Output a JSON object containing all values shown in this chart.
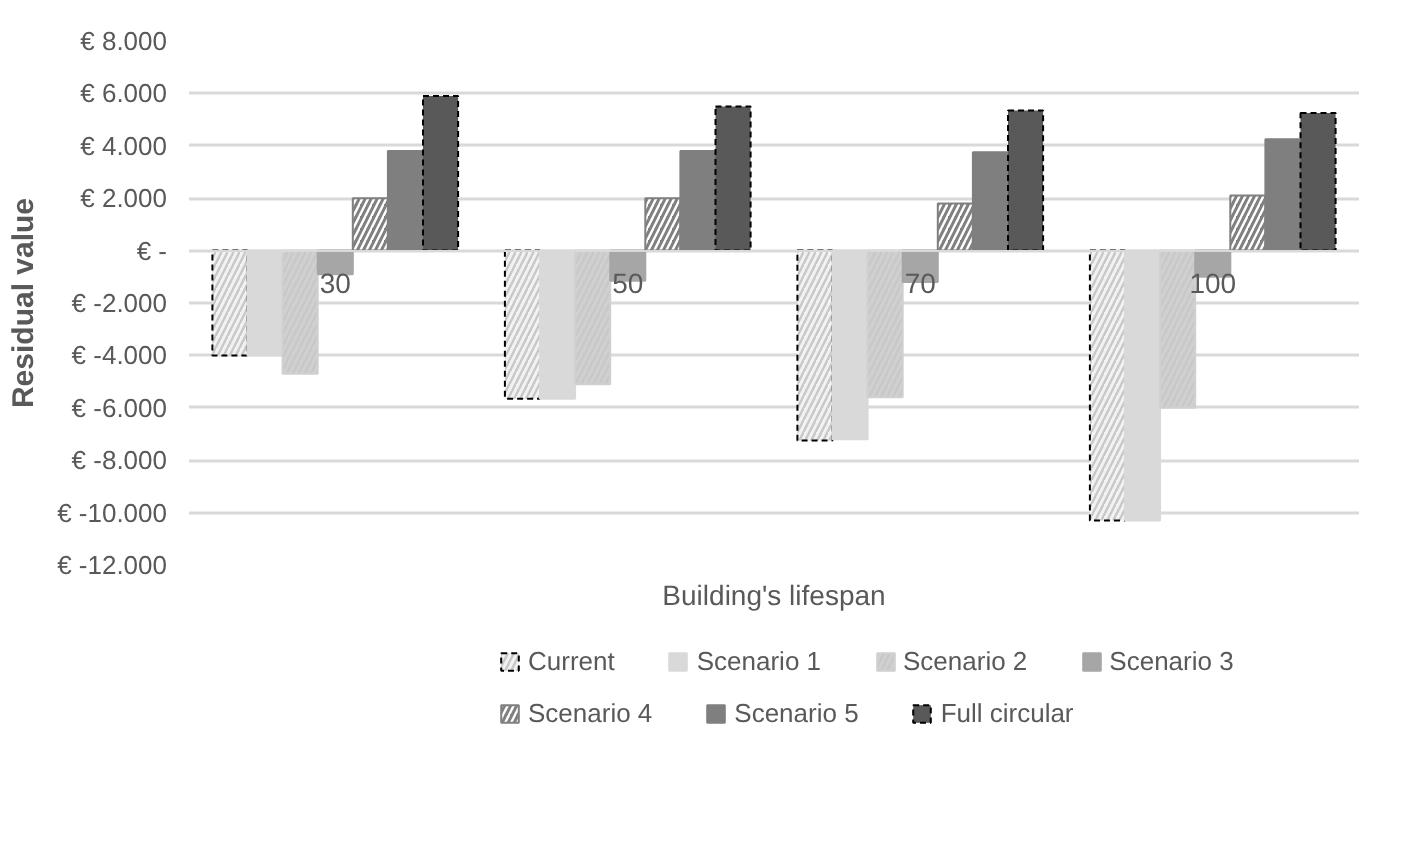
{
  "chart_data": {
    "type": "bar",
    "xlabel": "Building's lifespan",
    "ylabel": "Residual value",
    "categories": [
      "30",
      "50",
      "70",
      "100"
    ],
    "series": [
      {
        "name": "Current",
        "color": "#f2f2f2",
        "values": [
          -4000,
          -5650,
          -7250,
          -10300
        ]
      },
      {
        "name": "Scenario 1",
        "color": "#d9d9d9",
        "values": [
          -4000,
          -5650,
          -7200,
          -10300
        ]
      },
      {
        "name": "Scenario 2",
        "color": "#d0d0d0",
        "values": [
          -4700,
          -5100,
          -5600,
          -6000
        ]
      },
      {
        "name": "Scenario 3",
        "color": "#a6a6a6",
        "values": [
          -900,
          -1150,
          -1200,
          -1000
        ]
      },
      {
        "name": "Scenario 4",
        "color": "#808080",
        "values": [
          2000,
          2000,
          1800,
          2100
        ]
      },
      {
        "name": "Scenario 5",
        "color": "#7f7f7f",
        "values": [
          3800,
          3800,
          3750,
          4250
        ]
      },
      {
        "name": "Full circular",
        "color": "#595959",
        "values": [
          5900,
          5500,
          5350,
          5250
        ]
      }
    ],
    "ylim": [
      -12000,
      8000
    ],
    "yticks": [
      {
        "value": -12000,
        "label": "€ -12.000"
      },
      {
        "value": -10000,
        "label": "€ -10.000"
      },
      {
        "value": -8000,
        "label": "€ -8.000"
      },
      {
        "value": -6000,
        "label": "€ -6.000"
      },
      {
        "value": -4000,
        "label": "€ -4.000"
      },
      {
        "value": -2000,
        "label": "€ -2.000"
      },
      {
        "value": 0,
        "label": "€ -"
      },
      {
        "value": 2000,
        "label": "€ 2.000"
      },
      {
        "value": 4000,
        "label": "€ 4.000"
      },
      {
        "value": 6000,
        "label": "€ 6.000"
      },
      {
        "value": 8000,
        "label": "€ 8.000"
      }
    ],
    "grid": "y",
    "legend": "bottom"
  }
}
